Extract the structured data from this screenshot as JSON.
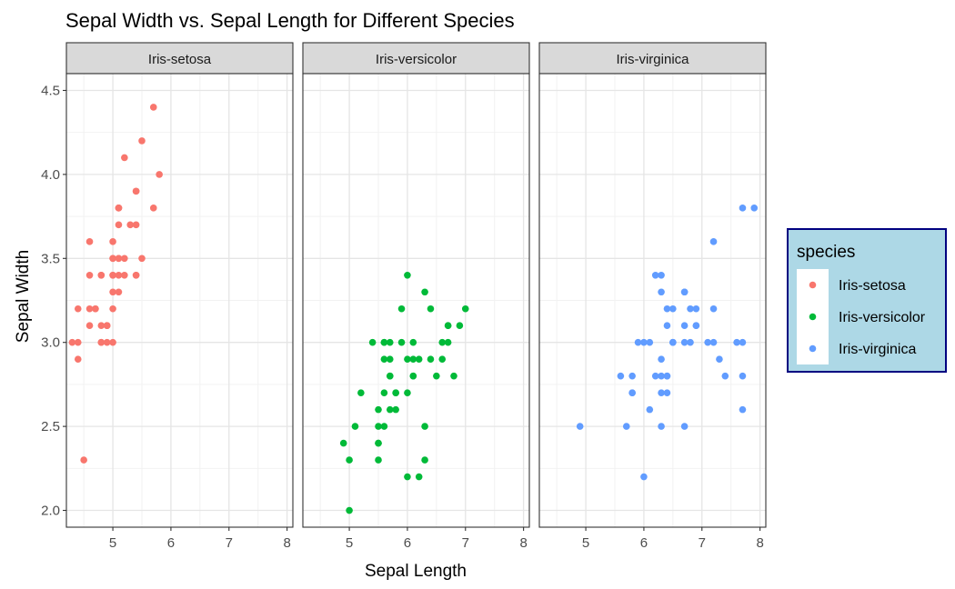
{
  "chart_data": {
    "type": "scatter",
    "title": "Sepal Width vs. Sepal Length for Different Species",
    "xlabel": "Sepal Length",
    "ylabel": "Sepal Width",
    "xlim": [
      4.2,
      8.1
    ],
    "ylim": [
      1.9,
      4.6
    ],
    "x_ticks": [
      5,
      6,
      7,
      8
    ],
    "y_ticks": [
      2.0,
      2.5,
      3.0,
      3.5,
      4.0,
      4.5
    ],
    "y_tick_labels": [
      "2.0",
      "2.5",
      "3.0",
      "3.5",
      "4.0",
      "4.5"
    ],
    "grid": true,
    "facet_by": "species",
    "legend": {
      "title": "species",
      "placement": "right",
      "background": "#ADD8E6",
      "border_color": "#000080"
    },
    "panel_strip_color": "#D9D9D9",
    "series": [
      {
        "name": "Iris-setosa",
        "color": "#F8766D",
        "points": [
          [
            5.1,
            3.5
          ],
          [
            4.9,
            3.0
          ],
          [
            4.7,
            3.2
          ],
          [
            4.6,
            3.1
          ],
          [
            5.0,
            3.6
          ],
          [
            5.4,
            3.9
          ],
          [
            4.6,
            3.4
          ],
          [
            5.0,
            3.4
          ],
          [
            4.4,
            2.9
          ],
          [
            4.9,
            3.1
          ],
          [
            5.4,
            3.7
          ],
          [
            4.8,
            3.4
          ],
          [
            4.8,
            3.0
          ],
          [
            4.3,
            3.0
          ],
          [
            5.8,
            4.0
          ],
          [
            5.7,
            4.4
          ],
          [
            5.4,
            3.9
          ],
          [
            5.1,
            3.5
          ],
          [
            5.7,
            3.8
          ],
          [
            5.1,
            3.8
          ],
          [
            5.4,
            3.4
          ],
          [
            5.1,
            3.7
          ],
          [
            4.6,
            3.6
          ],
          [
            5.1,
            3.3
          ],
          [
            4.8,
            3.4
          ],
          [
            5.0,
            3.0
          ],
          [
            5.0,
            3.4
          ],
          [
            5.2,
            3.5
          ],
          [
            5.2,
            3.4
          ],
          [
            4.7,
            3.2
          ],
          [
            4.8,
            3.1
          ],
          [
            5.4,
            3.4
          ],
          [
            5.2,
            4.1
          ],
          [
            5.5,
            4.2
          ],
          [
            4.9,
            3.1
          ],
          [
            5.0,
            3.2
          ],
          [
            5.5,
            3.5
          ],
          [
            4.9,
            3.1
          ],
          [
            4.4,
            3.0
          ],
          [
            5.1,
            3.4
          ],
          [
            5.0,
            3.5
          ],
          [
            4.5,
            2.3
          ],
          [
            4.4,
            3.2
          ],
          [
            5.0,
            3.5
          ],
          [
            5.1,
            3.8
          ],
          [
            4.8,
            3.0
          ],
          [
            5.1,
            3.8
          ],
          [
            4.6,
            3.2
          ],
          [
            5.3,
            3.7
          ],
          [
            5.0,
            3.3
          ]
        ]
      },
      {
        "name": "Iris-versicolor",
        "color": "#00BA38",
        "points": [
          [
            7.0,
            3.2
          ],
          [
            6.4,
            3.2
          ],
          [
            6.9,
            3.1
          ],
          [
            5.5,
            2.3
          ],
          [
            6.5,
            2.8
          ],
          [
            5.7,
            2.8
          ],
          [
            6.3,
            3.3
          ],
          [
            4.9,
            2.4
          ],
          [
            6.6,
            2.9
          ],
          [
            5.2,
            2.7
          ],
          [
            5.0,
            2.0
          ],
          [
            5.9,
            3.0
          ],
          [
            6.0,
            2.2
          ],
          [
            6.1,
            2.9
          ],
          [
            5.6,
            2.9
          ],
          [
            6.7,
            3.1
          ],
          [
            5.6,
            3.0
          ],
          [
            5.8,
            2.7
          ],
          [
            6.2,
            2.2
          ],
          [
            5.6,
            2.5
          ],
          [
            5.9,
            3.2
          ],
          [
            6.1,
            2.8
          ],
          [
            6.3,
            2.5
          ],
          [
            6.1,
            2.8
          ],
          [
            6.4,
            2.9
          ],
          [
            6.6,
            3.0
          ],
          [
            6.8,
            2.8
          ],
          [
            6.7,
            3.0
          ],
          [
            6.0,
            2.9
          ],
          [
            5.7,
            2.6
          ],
          [
            5.5,
            2.4
          ],
          [
            5.5,
            2.4
          ],
          [
            5.8,
            2.7
          ],
          [
            6.0,
            2.7
          ],
          [
            5.4,
            3.0
          ],
          [
            6.0,
            3.4
          ],
          [
            6.7,
            3.1
          ],
          [
            6.3,
            2.3
          ],
          [
            5.6,
            3.0
          ],
          [
            5.5,
            2.5
          ],
          [
            5.5,
            2.6
          ],
          [
            6.1,
            3.0
          ],
          [
            5.8,
            2.6
          ],
          [
            5.0,
            2.3
          ],
          [
            5.6,
            2.7
          ],
          [
            5.7,
            3.0
          ],
          [
            5.7,
            2.9
          ],
          [
            6.2,
            2.9
          ],
          [
            5.1,
            2.5
          ],
          [
            5.7,
            2.8
          ]
        ]
      },
      {
        "name": "Iris-virginica",
        "color": "#619CFF",
        "points": [
          [
            6.3,
            3.3
          ],
          [
            5.8,
            2.7
          ],
          [
            7.1,
            3.0
          ],
          [
            6.3,
            2.9
          ],
          [
            6.5,
            3.0
          ],
          [
            7.6,
            3.0
          ],
          [
            4.9,
            2.5
          ],
          [
            7.3,
            2.9
          ],
          [
            6.7,
            2.5
          ],
          [
            7.2,
            3.6
          ],
          [
            6.5,
            3.2
          ],
          [
            6.4,
            2.7
          ],
          [
            6.8,
            3.0
          ],
          [
            5.7,
            2.5
          ],
          [
            5.8,
            2.8
          ],
          [
            6.4,
            3.2
          ],
          [
            6.5,
            3.0
          ],
          [
            7.7,
            3.8
          ],
          [
            7.7,
            2.6
          ],
          [
            6.0,
            2.2
          ],
          [
            6.9,
            3.2
          ],
          [
            5.6,
            2.8
          ],
          [
            7.7,
            2.8
          ],
          [
            6.3,
            2.7
          ],
          [
            6.7,
            3.3
          ],
          [
            7.2,
            3.2
          ],
          [
            6.2,
            2.8
          ],
          [
            6.1,
            3.0
          ],
          [
            6.4,
            2.8
          ],
          [
            7.2,
            3.0
          ],
          [
            7.4,
            2.8
          ],
          [
            7.9,
            3.8
          ],
          [
            6.4,
            2.8
          ],
          [
            6.3,
            2.8
          ],
          [
            6.1,
            2.6
          ],
          [
            7.7,
            3.0
          ],
          [
            6.3,
            3.4
          ],
          [
            6.4,
            3.1
          ],
          [
            6.0,
            3.0
          ],
          [
            6.9,
            3.1
          ],
          [
            6.7,
            3.1
          ],
          [
            6.9,
            3.1
          ],
          [
            5.8,
            2.7
          ],
          [
            6.8,
            3.2
          ],
          [
            6.7,
            3.3
          ],
          [
            6.7,
            3.0
          ],
          [
            6.3,
            2.5
          ],
          [
            6.5,
            3.0
          ],
          [
            6.2,
            3.4
          ],
          [
            5.9,
            3.0
          ]
        ]
      }
    ]
  }
}
